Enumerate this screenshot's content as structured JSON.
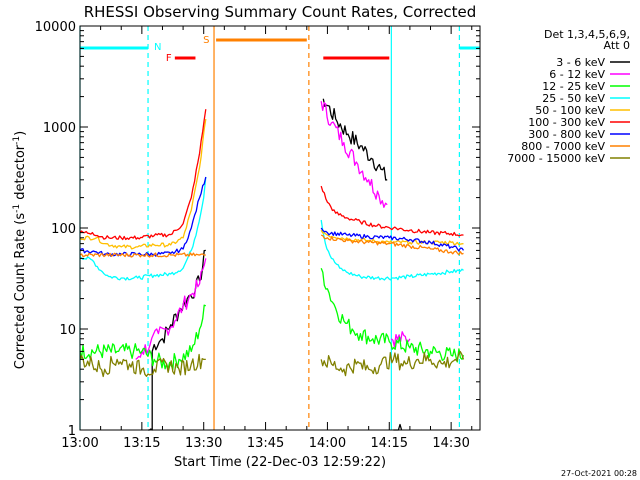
{
  "chart_data": {
    "type": "line",
    "title": "RHESSI Observing Summary Count Rates, Corrected",
    "xlabel": "Start Time (22-Dec-03 12:59:22)",
    "ylabel": "Corrected Count Rate (s⁻¹ detector⁻¹)",
    "ylabel_main": "Corrected Count Rate (s",
    "ylabel_sup1": "-1",
    "ylabel_mid": " detector",
    "ylabel_sup2": "-1",
    "ylabel_end": ")",
    "x_unit": "minutes after 13:00 UT",
    "xlim": [
      0,
      97
    ],
    "ylim": [
      1,
      10000
    ],
    "yscale": "log",
    "x_ticks": [
      {
        "v": 0,
        "label": "13:00"
      },
      {
        "v": 15,
        "label": "13:15"
      },
      {
        "v": 30,
        "label": "13:30"
      },
      {
        "v": 45,
        "label": "13:45"
      },
      {
        "v": 60,
        "label": "14:00"
      },
      {
        "v": 75,
        "label": "14:15"
      },
      {
        "v": 90,
        "label": "14:30"
      }
    ],
    "y_ticks": [
      {
        "v": 1,
        "label": "1"
      },
      {
        "v": 10,
        "label": "10"
      },
      {
        "v": 100,
        "label": "100"
      },
      {
        "v": 1000,
        "label": "1000"
      },
      {
        "v": 10000,
        "label": "10000"
      }
    ],
    "legend_header": [
      "Det 1,3,4,5,6,9,",
      "Att 0"
    ],
    "series": [
      {
        "name": "3 - 6 keV",
        "color": "#000000",
        "zorder": 1,
        "points": [
          [
            16.5,
            1
          ],
          [
            17.5,
            1
          ],
          [
            17.5,
            6
          ],
          [
            18,
            7
          ],
          [
            20,
            8
          ],
          [
            22,
            11
          ],
          [
            24,
            15
          ],
          [
            26,
            20
          ],
          [
            28,
            25
          ],
          [
            29,
            30
          ],
          [
            30.5,
            60
          ],
          [
            31,
            null
          ],
          [
            59,
            1900
          ],
          [
            62,
            1200
          ],
          [
            65,
            850
          ],
          [
            68,
            650
          ],
          [
            71,
            480
          ],
          [
            73,
            380
          ],
          [
            74.5,
            300
          ],
          [
            74.8,
            null
          ],
          [
            76,
            1
          ],
          [
            78,
            1
          ]
        ]
      },
      {
        "name": "6 - 12 keV",
        "color": "#ff00ff",
        "zorder": 2,
        "points": [
          [
            13.5,
            5
          ],
          [
            15,
            6
          ],
          [
            17,
            7
          ],
          [
            19,
            9
          ],
          [
            21,
            10
          ],
          [
            23,
            12
          ],
          [
            25,
            17
          ],
          [
            27,
            22
          ],
          [
            29,
            28
          ],
          [
            30.5,
            50
          ],
          [
            31,
            null
          ],
          [
            58.5,
            1800
          ],
          [
            61,
            1100
          ],
          [
            64,
            700
          ],
          [
            67,
            450
          ],
          [
            70,
            300
          ],
          [
            72.5,
            210
          ],
          [
            74.5,
            170
          ],
          [
            75,
            null
          ],
          [
            75.5,
            8
          ],
          [
            80,
            8
          ]
        ]
      },
      {
        "name": "12 - 25 keV",
        "color": "#00ff00",
        "zorder": 3,
        "points": [
          [
            0,
            6
          ],
          [
            9,
            6
          ],
          [
            13,
            6
          ],
          [
            15,
            6
          ],
          [
            18,
            5
          ],
          [
            21,
            4.5
          ],
          [
            24,
            5
          ],
          [
            27,
            6
          ],
          [
            29,
            10
          ],
          [
            30.5,
            17
          ],
          [
            31,
            null
          ],
          [
            58.5,
            40
          ],
          [
            60,
            25
          ],
          [
            62,
            16
          ],
          [
            64,
            12
          ],
          [
            66,
            10
          ],
          [
            68,
            9
          ],
          [
            71,
            8
          ],
          [
            75,
            7.5
          ],
          [
            80,
            6.5
          ],
          [
            85,
            6
          ],
          [
            90,
            5.5
          ],
          [
            93,
            5.5
          ]
        ]
      },
      {
        "name": "25 - 50 keV",
        "color": "#00ffff",
        "zorder": 4,
        "points": [
          [
            0,
            52
          ],
          [
            3,
            48
          ],
          [
            5,
            38
          ],
          [
            7,
            33
          ],
          [
            10,
            32
          ],
          [
            14,
            32
          ],
          [
            18,
            34
          ],
          [
            22,
            35
          ],
          [
            25,
            40
          ],
          [
            27,
            60
          ],
          [
            28.5,
            100
          ],
          [
            30,
            200
          ],
          [
            30.5,
            320
          ],
          [
            31,
            null
          ],
          [
            58.5,
            120
          ],
          [
            59.5,
            70
          ],
          [
            61,
            50
          ],
          [
            63,
            40
          ],
          [
            65,
            36
          ],
          [
            68,
            33
          ],
          [
            72,
            32
          ],
          [
            76,
            32
          ],
          [
            80,
            33
          ],
          [
            85,
            35
          ],
          [
            90,
            37
          ],
          [
            93,
            38
          ]
        ]
      },
      {
        "name": "50 - 100 keV",
        "color": "#ffbf00",
        "zorder": 5,
        "points": [
          [
            0,
            80
          ],
          [
            4,
            80
          ],
          [
            6,
            70
          ],
          [
            10,
            65
          ],
          [
            14,
            65
          ],
          [
            18,
            68
          ],
          [
            22,
            68
          ],
          [
            25,
            80
          ],
          [
            27,
            150
          ],
          [
            29,
            400
          ],
          [
            30.5,
            1200
          ],
          [
            31,
            null
          ],
          [
            58.5,
            95
          ],
          [
            60,
            85
          ],
          [
            65,
            78
          ],
          [
            70,
            75
          ],
          [
            75,
            72
          ],
          [
            80,
            72
          ],
          [
            85,
            72
          ],
          [
            90,
            72
          ],
          [
            93,
            70
          ]
        ]
      },
      {
        "name": "100 - 300 keV",
        "color": "#ff0000",
        "zorder": 6,
        "points": [
          [
            0,
            90
          ],
          [
            3,
            90
          ],
          [
            5,
            82
          ],
          [
            7,
            80
          ],
          [
            10,
            80
          ],
          [
            14,
            80
          ],
          [
            18,
            84
          ],
          [
            22,
            86
          ],
          [
            25,
            110
          ],
          [
            27,
            200
          ],
          [
            29,
            550
          ],
          [
            30.5,
            1500
          ],
          [
            31,
            null
          ],
          [
            58.5,
            260
          ],
          [
            60,
            180
          ],
          [
            62,
            140
          ],
          [
            65,
            125
          ],
          [
            68,
            115
          ],
          [
            72,
            105
          ],
          [
            76,
            100
          ],
          [
            80,
            95
          ],
          [
            85,
            90
          ],
          [
            90,
            88
          ],
          [
            93,
            85
          ]
        ]
      },
      {
        "name": "300 - 800 keV",
        "color": "#0000ff",
        "zorder": 7,
        "points": [
          [
            0,
            60
          ],
          [
            4,
            58
          ],
          [
            6,
            55
          ],
          [
            10,
            55
          ],
          [
            14,
            55
          ],
          [
            18,
            55
          ],
          [
            22,
            56
          ],
          [
            25,
            62
          ],
          [
            27,
            100
          ],
          [
            29,
            200
          ],
          [
            30.5,
            320
          ],
          [
            31,
            null
          ],
          [
            58.5,
            100
          ],
          [
            60,
            90
          ],
          [
            65,
            85
          ],
          [
            70,
            82
          ],
          [
            75,
            80
          ],
          [
            80,
            77
          ],
          [
            85,
            72
          ],
          [
            90,
            65
          ],
          [
            93,
            60
          ]
        ]
      },
      {
        "name": "800 - 7000 keV",
        "color": "#ff8000",
        "zorder": 8,
        "points": [
          [
            0,
            54
          ],
          [
            8,
            54
          ],
          [
            15,
            54
          ],
          [
            22,
            54
          ],
          [
            29,
            54
          ],
          [
            30.5,
            54
          ],
          [
            31,
            null
          ],
          [
            58.5,
            85
          ],
          [
            60,
            80
          ],
          [
            65,
            75
          ],
          [
            70,
            72
          ],
          [
            75,
            70
          ],
          [
            80,
            66
          ],
          [
            85,
            62
          ],
          [
            90,
            58
          ],
          [
            93,
            56
          ]
        ]
      },
      {
        "name": "7000 - 15000 keV",
        "color": "#808000",
        "zorder": 9,
        "points": [
          [
            0,
            5
          ],
          [
            3,
            4.5
          ],
          [
            6,
            4
          ],
          [
            9,
            5
          ],
          [
            12,
            4.5
          ],
          [
            15,
            4
          ],
          [
            18,
            4
          ],
          [
            21,
            4.5
          ],
          [
            24,
            4
          ],
          [
            27,
            4.5
          ],
          [
            30,
            5
          ],
          [
            30.5,
            5
          ],
          [
            31,
            null
          ],
          [
            58.5,
            5
          ],
          [
            61,
            4.5
          ],
          [
            64,
            4
          ],
          [
            67,
            4.5
          ],
          [
            70,
            4
          ],
          [
            73,
            4.5
          ],
          [
            76,
            5
          ],
          [
            79,
            4.5
          ],
          [
            82,
            5
          ],
          [
            85,
            5
          ],
          [
            88,
            4.5
          ],
          [
            91,
            5
          ],
          [
            93,
            5
          ]
        ]
      }
    ],
    "annotations": [
      {
        "id": "night",
        "label": "N",
        "color": "#00ffff",
        "bars": [
          [
            0,
            16.5
          ],
          [
            92,
            97
          ]
        ]
      },
      {
        "id": "flare",
        "label": "F",
        "color": "#ff0000",
        "bars": [
          [
            23,
            28
          ],
          [
            59,
            75
          ]
        ]
      },
      {
        "id": "saa",
        "label": "S",
        "color": "#ff8000",
        "bars": [
          [
            33,
            55
          ]
        ]
      }
    ],
    "vertical_markers": [
      {
        "x": 0,
        "color": "#00ffff",
        "style": "solid"
      },
      {
        "x": 16.5,
        "color": "#00ffff",
        "style": "dashed"
      },
      {
        "x": 32.5,
        "color": "#ff8000",
        "style": "solid"
      },
      {
        "x": 55.5,
        "color": "#ff8000",
        "style": "dashed"
      },
      {
        "x": 75.5,
        "color": "#00ffff",
        "style": "solid"
      },
      {
        "x": 92,
        "color": "#00ffff",
        "style": "dashed"
      }
    ],
    "timestamp": "27-Oct-2021 00:28"
  }
}
